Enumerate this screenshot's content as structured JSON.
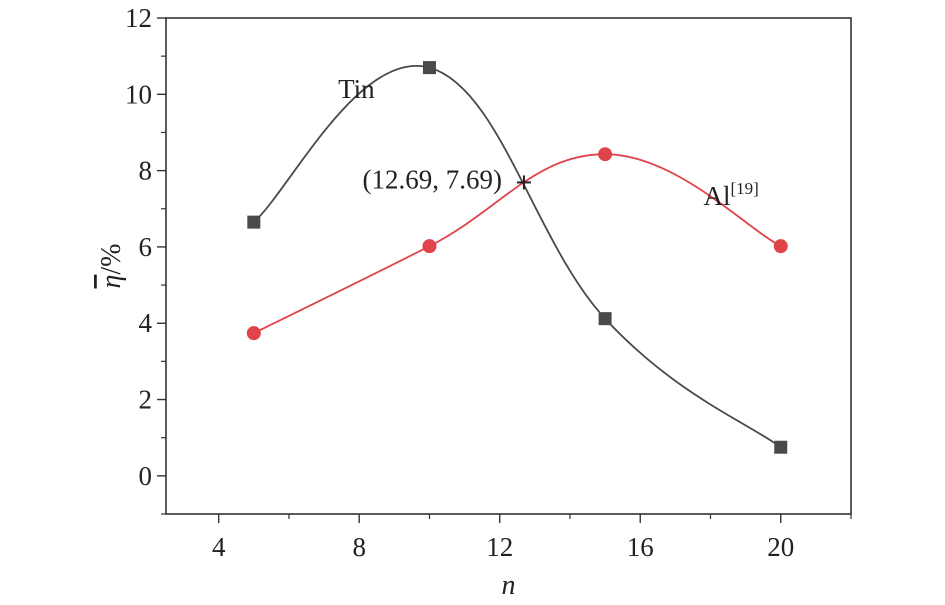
{
  "chart_data": {
    "type": "line",
    "xlabel": "n",
    "ylabel_symbol": "η",
    "ylabel_unit": "/%",
    "xlim": [
      2.5,
      22
    ],
    "ylim": [
      -1,
      12
    ],
    "x_ticks": [
      4,
      8,
      12,
      16,
      20
    ],
    "y_ticks": [
      0,
      2,
      4,
      6,
      8,
      10,
      12
    ],
    "grid": false,
    "series": [
      {
        "name": "Tin",
        "marker": "square",
        "color": "#4a4a4a",
        "points": [
          [
            5,
            6.65
          ],
          [
            10,
            10.7
          ],
          [
            15,
            4.12
          ],
          [
            20,
            0.75
          ]
        ]
      },
      {
        "name": "Al",
        "name_superscript": "[19]",
        "marker": "circle",
        "color": "#e0434a",
        "points": [
          [
            5,
            3.74
          ],
          [
            10,
            6.02
          ],
          [
            15,
            8.43
          ],
          [
            20,
            6.02
          ]
        ]
      }
    ],
    "annotation": {
      "text": "(12.69, 7.69)",
      "x": 12.69,
      "y": 7.69,
      "marker": "+"
    }
  }
}
